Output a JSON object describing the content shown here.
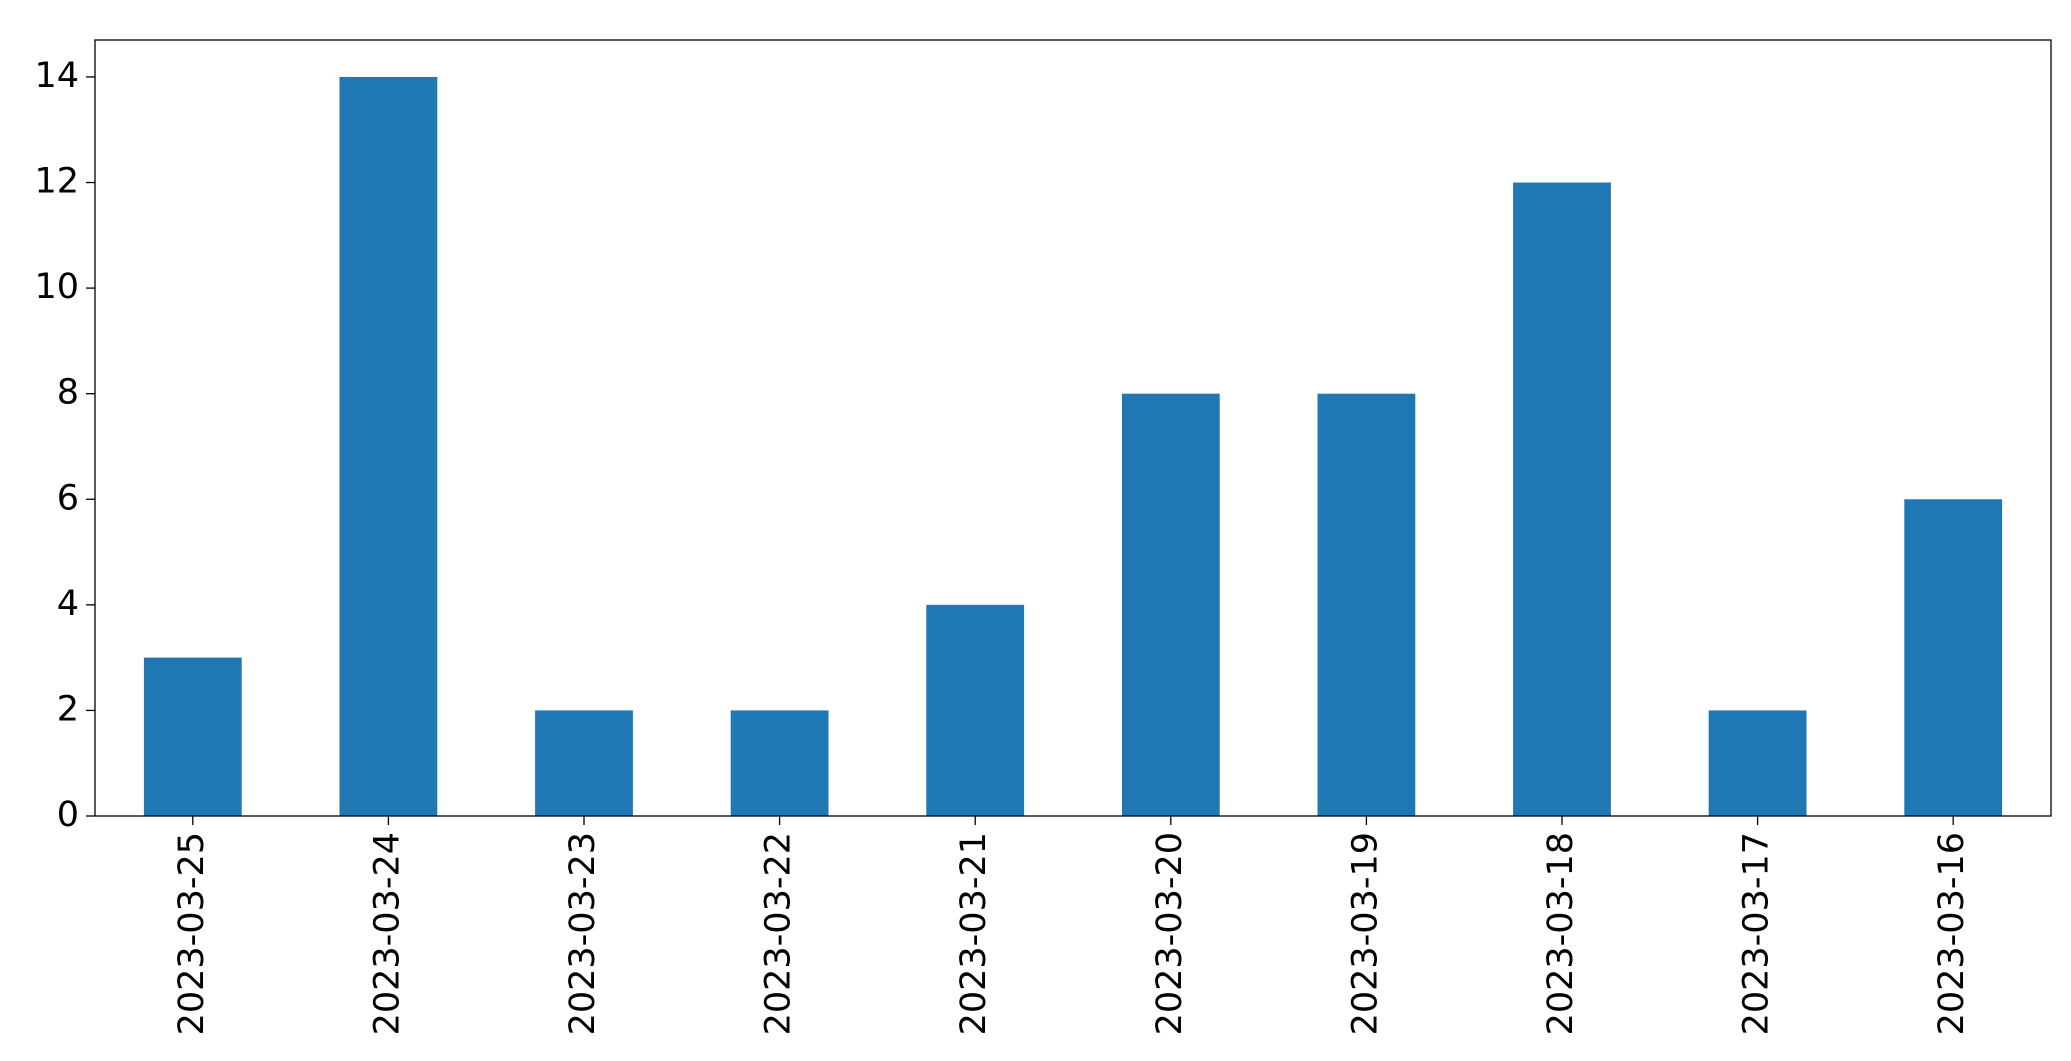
{
  "chart_data": {
    "type": "bar",
    "categories": [
      "2023-03-25",
      "2023-03-24",
      "2023-03-23",
      "2023-03-22",
      "2023-03-21",
      "2023-03-20",
      "2023-03-19",
      "2023-03-18",
      "2023-03-17",
      "2023-03-16"
    ],
    "values": [
      3,
      14,
      2,
      2,
      4,
      8,
      8,
      12,
      2,
      6
    ],
    "color": "#1f77b4",
    "ylim": [
      0,
      14.7
    ],
    "yticks": [
      0,
      2,
      4,
      6,
      8,
      10,
      12,
      14
    ],
    "grid": false
  }
}
